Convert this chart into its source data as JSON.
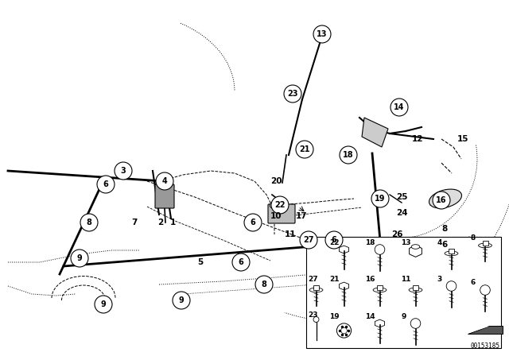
{
  "bg_color": "#ffffff",
  "fig_width": 6.4,
  "fig_height": 4.48,
  "dpi": 100,
  "diagram_id": "00153185",
  "line_color": "#000000"
}
